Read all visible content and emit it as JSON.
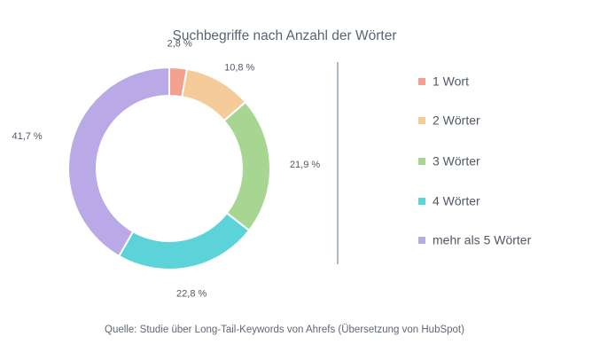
{
  "chart_data": {
    "type": "pie",
    "variant": "donut",
    "title": "Suchbegriffe nach Anzahl der Wörter",
    "categories": [
      "1 Wort",
      "2 Wörter",
      "3 Wörter",
      "4 Wörter",
      "mehr als 5 Wörter"
    ],
    "values": [
      2.8,
      10.8,
      21.9,
      22.8,
      41.7
    ],
    "value_labels": [
      "2,8 %",
      "10,8 %",
      "21,9 %",
      "22,8 %",
      "41,7 %"
    ],
    "colors": [
      "#f4a08f",
      "#f6cb9a",
      "#a6d692",
      "#5bd3d9",
      "#b9a9e6"
    ],
    "legend_position": "right",
    "source": "Quelle: Studie über Long-Tail-Keywords von Ahrefs (Übersetzung von HubSpot)"
  }
}
